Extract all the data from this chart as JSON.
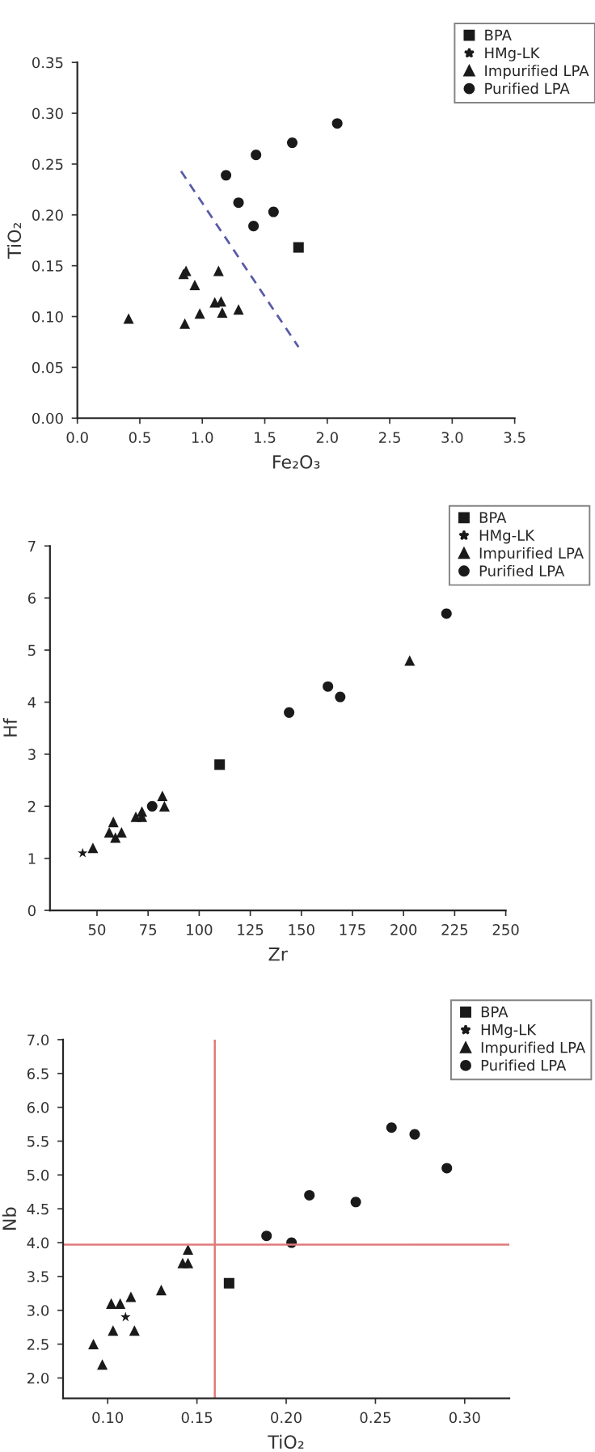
{
  "chart_data": [
    {
      "type": "scatter",
      "xlabel": "Fe₂O₃",
      "ylabel": "TiO₂",
      "legend": "top right",
      "grid": false,
      "xlim": [
        0,
        3.5
      ],
      "ylim": [
        0,
        0.35
      ],
      "xticks": [
        {
          "value": 0,
          "label": "0.0"
        },
        {
          "value": 0.5,
          "label": "0.5"
        },
        {
          "value": 1,
          "label": "1.0"
        },
        {
          "value": 1.5,
          "label": "1.5"
        },
        {
          "value": 2,
          "label": "2.0"
        },
        {
          "value": 2.5,
          "label": "2.5"
        },
        {
          "value": 3,
          "label": "3.0"
        },
        {
          "value": 3.5,
          "label": "3.5"
        }
      ],
      "yticks": [
        {
          "value": 0,
          "label": "0.00"
        },
        {
          "value": 0.05,
          "label": "0.05"
        },
        {
          "value": 0.1,
          "label": "0.10"
        },
        {
          "value": 0.15,
          "label": "0.15"
        },
        {
          "value": 0.2,
          "label": "0.20"
        },
        {
          "value": 0.25,
          "label": "0.25"
        },
        {
          "value": 0.3,
          "label": "0.30"
        },
        {
          "value": 0.35,
          "label": "0.35"
        }
      ],
      "series": [
        {
          "name": "BPA",
          "color": "#1a1a1a",
          "marker": "square",
          "x": [
            1.77
          ],
          "values": [
            0.168
          ]
        },
        {
          "name": "HMg-LK",
          "color": "#1a1a1a",
          "marker": "star",
          "x": [
            null
          ],
          "values": [
            null
          ]
        },
        {
          "name": "Impurified LPA",
          "color": "#1a1a1a",
          "marker": "triangle",
          "x": [
            0.41,
            0.86,
            0.85,
            0.87,
            0.94,
            0.98,
            1.1,
            1.13,
            1.15,
            1.16,
            1.29
          ],
          "values": [
            0.098,
            0.093,
            0.142,
            0.145,
            0.131,
            0.103,
            0.114,
            0.145,
            0.115,
            0.104,
            0.107
          ]
        },
        {
          "name": "Purified LPA",
          "color": "#1a1a1a",
          "marker": "circle",
          "x": [
            1.19,
            1.43,
            1.72,
            2.08,
            1.29,
            1.57,
            1.41
          ],
          "values": [
            0.239,
            0.259,
            0.271,
            0.29,
            0.212,
            0.203,
            0.189
          ]
        },
        {
          "type": "line",
          "color": "#5a5aa8",
          "marker": "none",
          "line_style": "dashed",
          "x": [
            0.83,
            1.77
          ],
          "values": [
            0.243,
            0.07
          ]
        }
      ]
    },
    {
      "type": "scatter",
      "xlabel": "Zr",
      "ylabel": "Hf",
      "legend": "top right",
      "grid": false,
      "xlim": [
        27,
        250
      ],
      "ylim": [
        0,
        7
      ],
      "xticks": [
        50,
        75,
        100,
        125,
        150,
        175,
        200,
        225,
        250
      ],
      "yticks": [
        0,
        1,
        2,
        3,
        4,
        5,
        6,
        7
      ],
      "series": [
        {
          "name": "BPA",
          "color": "#1a1a1a",
          "marker": "square",
          "x": [
            110
          ],
          "values": [
            2.8
          ]
        },
        {
          "name": "HMg-LK",
          "color": "#1a1a1a",
          "marker": "star",
          "x": [
            43
          ],
          "values": [
            1.1
          ]
        },
        {
          "name": "Impurified LPA",
          "color": "#1a1a1a",
          "marker": "triangle",
          "x": [
            48,
            56,
            58,
            59,
            62,
            69,
            72,
            72,
            82,
            83,
            203
          ],
          "values": [
            1.2,
            1.5,
            1.7,
            1.4,
            1.5,
            1.8,
            1.8,
            1.9,
            2.2,
            2.0,
            4.8
          ]
        },
        {
          "name": "Purified LPA",
          "color": "#1a1a1a",
          "marker": "circle",
          "x": [
            77,
            144,
            163,
            169,
            221
          ],
          "values": [
            2.0,
            3.8,
            4.3,
            4.1,
            5.7
          ]
        }
      ]
    },
    {
      "type": "scatter",
      "xlabel": "TiO₂",
      "ylabel": "Nb",
      "legend": "top right",
      "grid": false,
      "xlim": [
        0.075,
        0.325
      ],
      "ylim": [
        1.7,
        7.0
      ],
      "xticks": [
        {
          "value": 0.1,
          "label": "0.10"
        },
        {
          "value": 0.15,
          "label": "0.15"
        },
        {
          "value": 0.2,
          "label": "0.20"
        },
        {
          "value": 0.25,
          "label": "0.25"
        },
        {
          "value": 0.3,
          "label": "0.30"
        }
      ],
      "yticks": [
        {
          "value": 2,
          "label": "2.0"
        },
        {
          "value": 2.5,
          "label": "2.5"
        },
        {
          "value": 3,
          "label": "3.0"
        },
        {
          "value": 3.5,
          "label": "3.5"
        },
        {
          "value": 4,
          "label": "4.0"
        },
        {
          "value": 4.5,
          "label": "4.5"
        },
        {
          "value": 5,
          "label": "5.0"
        },
        {
          "value": 5.5,
          "label": "5.5"
        },
        {
          "value": 6,
          "label": "6.0"
        },
        {
          "value": 6.5,
          "label": "6.5"
        },
        {
          "value": 7,
          "label": "7.0"
        }
      ],
      "ref_lines": [
        {
          "axis": "x",
          "value": 0.16,
          "color": "#e07a7a"
        },
        {
          "axis": "y",
          "value": 3.97,
          "color": "#e07a7a"
        }
      ],
      "series": [
        {
          "name": "BPA",
          "color": "#1a1a1a",
          "marker": "square",
          "x": [
            0.168
          ],
          "values": [
            3.4
          ]
        },
        {
          "name": "HMg-LK",
          "color": "#1a1a1a",
          "marker": "star",
          "x": [
            0.11
          ],
          "values": [
            2.9
          ]
        },
        {
          "name": "Impurified LPA",
          "color": "#1a1a1a",
          "marker": "triangle",
          "x": [
            0.092,
            0.097,
            0.102,
            0.103,
            0.107,
            0.113,
            0.115,
            0.13,
            0.142,
            0.145,
            0.145
          ],
          "values": [
            2.5,
            2.2,
            3.1,
            2.7,
            3.1,
            3.2,
            2.7,
            3.3,
            3.7,
            3.7,
            3.9
          ]
        },
        {
          "name": "Purified LPA",
          "color": "#1a1a1a",
          "marker": "circle",
          "x": [
            0.189,
            0.203,
            0.213,
            0.239,
            0.259,
            0.272,
            0.29
          ],
          "values": [
            4.1,
            4.0,
            4.7,
            4.6,
            5.7,
            5.6,
            5.1
          ]
        }
      ]
    }
  ]
}
